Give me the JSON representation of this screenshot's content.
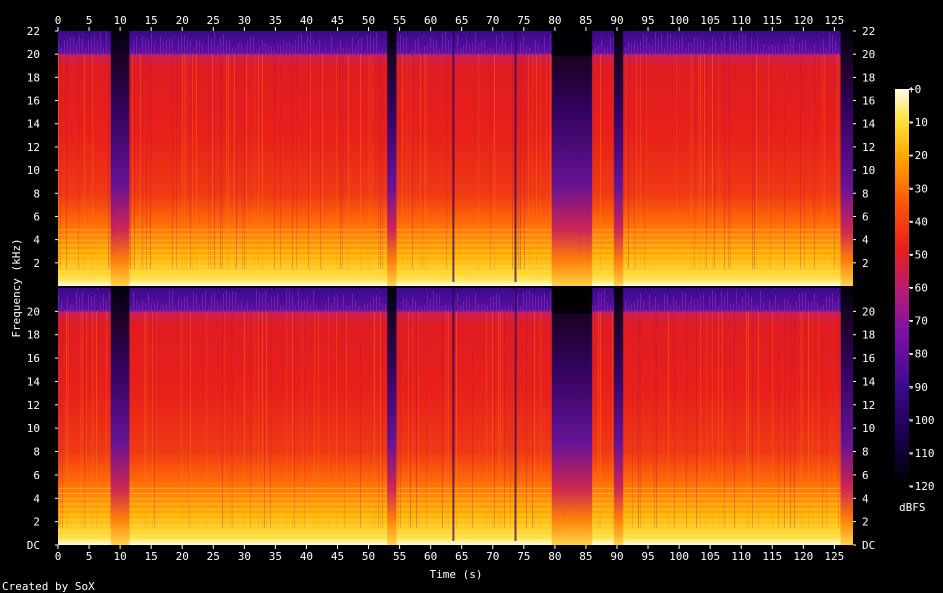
{
  "chart_data": {
    "type": "heatmap",
    "title": "",
    "xlabel": "Time (s)",
    "ylabel": "Frequency (kHz)",
    "credit": "Created by SoX",
    "xlim": [
      0,
      128
    ],
    "x_ticks": [
      "0",
      "5",
      "10",
      "15",
      "20",
      "25",
      "30",
      "35",
      "40",
      "45",
      "50",
      "55",
      "60",
      "65",
      "70",
      "75",
      "80",
      "85",
      "90",
      "95",
      "100",
      "105",
      "110",
      "115",
      "120",
      "125"
    ],
    "ylim_khz": [
      0,
      22
    ],
    "y_ticks_upper": [
      "2",
      "4",
      "6",
      "8",
      "10",
      "12",
      "14",
      "16",
      "18",
      "20",
      "22"
    ],
    "y_ticks_lower": [
      "DC",
      "2",
      "4",
      "6",
      "8",
      "10",
      "12",
      "14",
      "16",
      "18",
      "20"
    ],
    "channels": 2,
    "colorbar": {
      "unit": "dBFS",
      "range": [
        -120,
        0
      ],
      "ticks": [
        "+0",
        "-10",
        "-20",
        "-30",
        "-40",
        "-50",
        "-60",
        "-70",
        "-80",
        "-90",
        "-100",
        "-110",
        "-120"
      ]
    },
    "content_cutoff_khz": 20,
    "quiet_segments_s": [
      [
        8.5,
        11.5
      ],
      [
        53,
        54.5
      ],
      [
        79.5,
        86
      ],
      [
        89.5,
        91
      ],
      [
        126,
        128
      ]
    ],
    "notable_dips_s": [
      63.5,
      73.5
    ]
  },
  "colors": {
    "background": "#000000",
    "text": "#ffffff",
    "colormap": [
      "#000000",
      "#19004a",
      "#3a0a8c",
      "#7a10a8",
      "#b81e6e",
      "#e8201a",
      "#ff5a08",
      "#ffa800",
      "#ffe040",
      "#fffbe6"
    ]
  }
}
